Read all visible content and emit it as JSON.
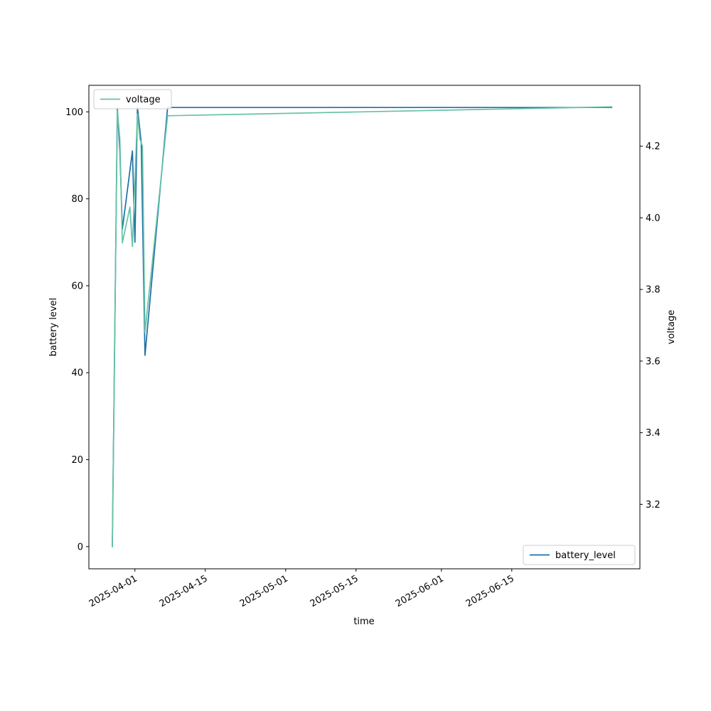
{
  "chart_data": {
    "type": "line",
    "xlabel": "time",
    "ylabel_left": "battery level",
    "ylabel_right": "voltage",
    "x_ticks": [
      "2025-04-01",
      "2025-04-15",
      "2025-05-01",
      "2025-05-15",
      "2025-06-01",
      "2025-06-15"
    ],
    "xlim": [
      "2025-03-22T20:00",
      "2025-07-10T12:00"
    ],
    "ylim_left": [
      -5.1,
      106.1
    ],
    "ylim_right": [
      3.02,
      4.37
    ],
    "y_ticks_left": [
      0,
      20,
      40,
      60,
      80,
      100
    ],
    "y_ticks_right": [
      3.2,
      3.4,
      3.6,
      3.8,
      4.0,
      4.2
    ],
    "grid": false,
    "series": [
      {
        "name": "battery_level",
        "axis": "left",
        "color": "#1f6fa8",
        "legend_position": "lower-right",
        "points": [
          [
            "2025-03-27T12:00",
            0
          ],
          [
            "2025-03-28T12:00",
            101
          ],
          [
            "2025-03-29T00:00",
            91
          ],
          [
            "2025-03-29T12:00",
            73
          ],
          [
            "2025-03-31T12:00",
            91
          ],
          [
            "2025-04-01T00:00",
            70
          ],
          [
            "2025-04-01T12:00",
            101
          ],
          [
            "2025-04-02T06:00",
            93
          ],
          [
            "2025-04-03T00:00",
            44
          ],
          [
            "2025-04-07T12:00",
            101
          ],
          [
            "2025-07-05T00:00",
            101
          ]
        ]
      },
      {
        "name": "voltage",
        "axis": "right",
        "color": "#66c2a5",
        "legend_position": "upper-left",
        "points": [
          [
            "2025-03-27T12:00",
            3.08
          ],
          [
            "2025-03-28T12:00",
            4.3
          ],
          [
            "2025-03-29T00:00",
            4.22
          ],
          [
            "2025-03-29T12:00",
            3.93
          ],
          [
            "2025-03-31T00:00",
            4.03
          ],
          [
            "2025-03-31T12:00",
            3.92
          ],
          [
            "2025-04-01T12:00",
            4.29
          ],
          [
            "2025-04-02T00:00",
            4.22
          ],
          [
            "2025-04-02T12:00",
            4.2
          ],
          [
            "2025-04-03T00:00",
            3.68
          ],
          [
            "2025-04-07T12:00",
            4.285
          ],
          [
            "2025-07-05T00:00",
            4.31
          ]
        ]
      }
    ]
  }
}
